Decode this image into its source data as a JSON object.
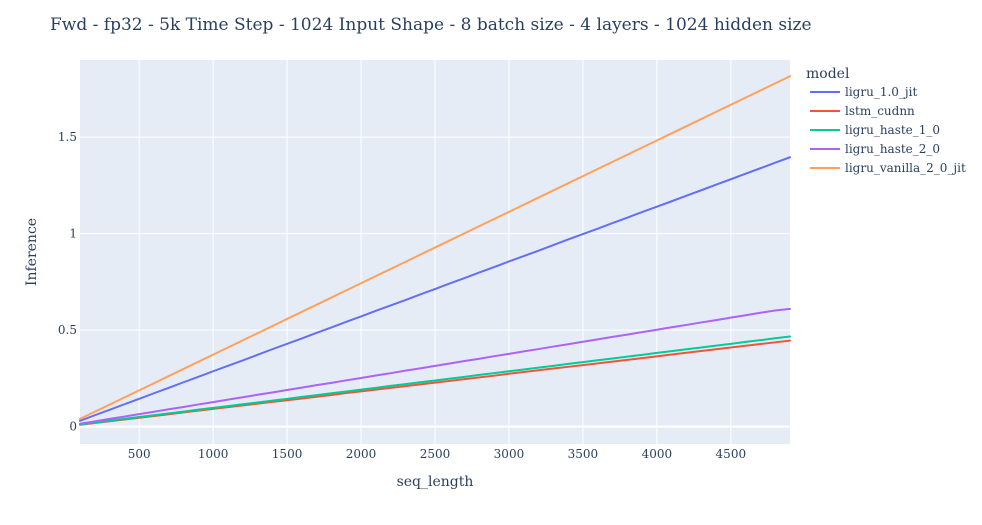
{
  "chart_data": {
    "type": "line",
    "title": "Fwd - fp32 - 5k Time Step - 1024 Input Shape - 8 batch size - 4 layers - 1024 hidden size",
    "xlabel": "seq_length",
    "ylabel": "Inference",
    "legend_title": "model",
    "legend_position": "right",
    "grid": true,
    "xlim": [
      100,
      4900
    ],
    "ylim": [
      -0.09,
      1.9
    ],
    "x_ticks": [
      500,
      1000,
      1500,
      2000,
      2500,
      3000,
      3500,
      4000,
      4500
    ],
    "x_tick_labels": [
      "500",
      "1000",
      "1500",
      "2000",
      "2500",
      "3000",
      "3500",
      "4000",
      "4500"
    ],
    "y_ticks": [
      0,
      0.5,
      1,
      1.5
    ],
    "y_tick_labels": [
      "0",
      "0.5",
      "1",
      "1.5"
    ],
    "x": [
      100,
      200,
      300,
      400,
      500,
      600,
      700,
      800,
      900,
      1000,
      1100,
      1200,
      1300,
      1400,
      1500,
      1600,
      1700,
      1800,
      1900,
      2000,
      2100,
      2200,
      2300,
      2400,
      2500,
      2600,
      2700,
      2800,
      2900,
      3000,
      3100,
      3200,
      3300,
      3400,
      3500,
      3600,
      3700,
      3800,
      3900,
      4000,
      4100,
      4200,
      4300,
      4400,
      4500,
      4600,
      4700,
      4800,
      4900
    ],
    "series": [
      {
        "name": "ligru_1.0_jit",
        "color": "#636efa",
        "values": [
          0.03,
          0.059,
          0.087,
          0.116,
          0.144,
          0.173,
          0.201,
          0.23,
          0.258,
          0.287,
          0.315,
          0.343,
          0.372,
          0.401,
          0.429,
          0.457,
          0.486,
          0.514,
          0.543,
          0.571,
          0.6,
          0.628,
          0.656,
          0.685,
          0.713,
          0.742,
          0.77,
          0.799,
          0.827,
          0.856,
          0.884,
          0.912,
          0.941,
          0.97,
          0.998,
          1.026,
          1.055,
          1.083,
          1.112,
          1.14,
          1.168,
          1.197,
          1.225,
          1.254,
          1.282,
          1.311,
          1.339,
          1.368,
          1.396
        ]
      },
      {
        "name": "lstm_cudnn",
        "color": "#ef553b",
        "values": [
          0.01,
          0.019,
          0.028,
          0.037,
          0.046,
          0.055,
          0.064,
          0.074,
          0.083,
          0.092,
          0.101,
          0.11,
          0.119,
          0.128,
          0.137,
          0.146,
          0.155,
          0.164,
          0.174,
          0.183,
          0.192,
          0.201,
          0.21,
          0.219,
          0.228,
          0.237,
          0.246,
          0.255,
          0.264,
          0.274,
          0.283,
          0.292,
          0.301,
          0.31,
          0.319,
          0.328,
          0.337,
          0.346,
          0.355,
          0.364,
          0.374,
          0.383,
          0.392,
          0.401,
          0.41,
          0.419,
          0.428,
          0.437,
          0.446
        ]
      },
      {
        "name": "ligru_haste_1_0",
        "color": "#00cc96",
        "values": [
          0.012,
          0.021,
          0.031,
          0.04,
          0.05,
          0.059,
          0.069,
          0.078,
          0.088,
          0.097,
          0.106,
          0.116,
          0.125,
          0.135,
          0.144,
          0.154,
          0.163,
          0.173,
          0.182,
          0.192,
          0.201,
          0.211,
          0.22,
          0.23,
          0.239,
          0.249,
          0.258,
          0.268,
          0.277,
          0.287,
          0.296,
          0.306,
          0.315,
          0.325,
          0.334,
          0.344,
          0.353,
          0.363,
          0.372,
          0.382,
          0.391,
          0.401,
          0.41,
          0.42,
          0.429,
          0.439,
          0.448,
          0.458,
          0.467
        ]
      },
      {
        "name": "ligru_haste_2_0",
        "color": "#ab63fa",
        "values": [
          0.015,
          0.027,
          0.04,
          0.052,
          0.065,
          0.077,
          0.09,
          0.102,
          0.115,
          0.127,
          0.14,
          0.152,
          0.165,
          0.177,
          0.19,
          0.202,
          0.215,
          0.227,
          0.24,
          0.252,
          0.265,
          0.277,
          0.29,
          0.302,
          0.315,
          0.327,
          0.34,
          0.352,
          0.365,
          0.377,
          0.39,
          0.402,
          0.415,
          0.427,
          0.44,
          0.452,
          0.465,
          0.477,
          0.49,
          0.502,
          0.515,
          0.527,
          0.54,
          0.552,
          0.565,
          0.577,
          0.59,
          0.602,
          0.61
        ]
      },
      {
        "name": "ligru_vanilla_2_0_jit",
        "color": "#ffa15a",
        "values": [
          0.04,
          0.077,
          0.114,
          0.151,
          0.188,
          0.225,
          0.262,
          0.299,
          0.336,
          0.373,
          0.41,
          0.447,
          0.484,
          0.521,
          0.558,
          0.595,
          0.632,
          0.669,
          0.706,
          0.743,
          0.78,
          0.817,
          0.854,
          0.891,
          0.928,
          0.965,
          1.002,
          1.039,
          1.076,
          1.113,
          1.15,
          1.187,
          1.224,
          1.261,
          1.298,
          1.335,
          1.372,
          1.409,
          1.446,
          1.483,
          1.52,
          1.557,
          1.594,
          1.631,
          1.668,
          1.705,
          1.742,
          1.779,
          1.816
        ]
      }
    ]
  }
}
